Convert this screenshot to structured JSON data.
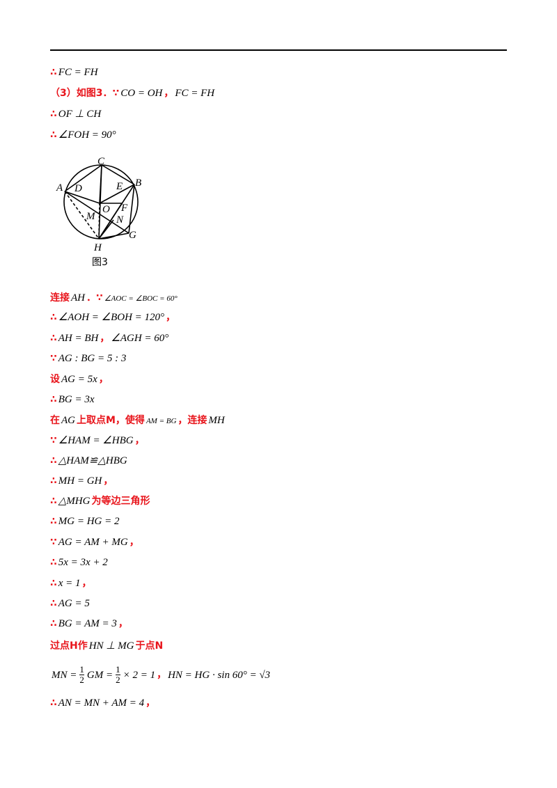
{
  "lines": [
    {
      "parts": [
        {
          "text": "∴",
          "style": "red"
        },
        {
          "text": "FC = FH",
          "style": "math"
        }
      ]
    },
    {
      "parts": [
        {
          "text": "（3）如图3．∵",
          "style": "red"
        },
        {
          "text": "CO = OH",
          "style": "math"
        },
        {
          "text": "，",
          "style": "red"
        },
        {
          "text": "FC = FH",
          "style": "math"
        }
      ]
    },
    {
      "parts": [
        {
          "text": "∴",
          "style": "red"
        },
        {
          "text": "OF ⊥ CH",
          "style": "math"
        }
      ]
    },
    {
      "parts": [
        {
          "text": "∴",
          "style": "red"
        },
        {
          "text": "∠FOH = 90°",
          "style": "math"
        }
      ]
    },
    {
      "parts": [
        {
          "text": "连接",
          "style": "red"
        },
        {
          "text": "AH",
          "style": "math"
        },
        {
          "text": "．∵",
          "style": "red"
        },
        {
          "text": "∠AOC = ∠BOC = 60°",
          "style": "small"
        }
      ]
    },
    {
      "parts": [
        {
          "text": "∴",
          "style": "red"
        },
        {
          "text": "∠AOH = ∠BOH = 120°",
          "style": "math"
        },
        {
          "text": "，",
          "style": "red"
        }
      ]
    },
    {
      "parts": [
        {
          "text": "∴",
          "style": "red"
        },
        {
          "text": "AH = BH",
          "style": "math"
        },
        {
          "text": "，",
          "style": "red"
        },
        {
          "text": "∠AGH = 60°",
          "style": "math"
        }
      ]
    },
    {
      "parts": [
        {
          "text": "∵",
          "style": "red"
        },
        {
          "text": "AG : BG = 5 : 3",
          "style": "math"
        }
      ]
    },
    {
      "parts": [
        {
          "text": "设",
          "style": "red"
        },
        {
          "text": "AG = 5x",
          "style": "math"
        },
        {
          "text": "，",
          "style": "red"
        }
      ]
    },
    {
      "parts": [
        {
          "text": "∴",
          "style": "red"
        },
        {
          "text": "BG = 3x",
          "style": "math"
        }
      ]
    },
    {
      "parts": [
        {
          "text": "在",
          "style": "red"
        },
        {
          "text": "AG",
          "style": "math"
        },
        {
          "text": "上取点M，使得",
          "style": "red"
        },
        {
          "text": "AM = BG",
          "style": "small"
        },
        {
          "text": "，连接",
          "style": "red"
        },
        {
          "text": "MH",
          "style": "math"
        }
      ]
    },
    {
      "parts": [
        {
          "text": "∵",
          "style": "red"
        },
        {
          "text": "∠HAM = ∠HBG",
          "style": "math"
        },
        {
          "text": "，",
          "style": "red"
        }
      ]
    },
    {
      "parts": [
        {
          "text": "∴",
          "style": "red"
        },
        {
          "text": "△HAM≌△HBG",
          "style": "math"
        }
      ]
    },
    {
      "parts": [
        {
          "text": "∴",
          "style": "red"
        },
        {
          "text": "MH = GH",
          "style": "math"
        },
        {
          "text": "，",
          "style": "red"
        }
      ]
    },
    {
      "parts": [
        {
          "text": "∴",
          "style": "red"
        },
        {
          "text": "△MHG",
          "style": "math"
        },
        {
          "text": "为等边三角形",
          "style": "red"
        }
      ]
    },
    {
      "parts": [
        {
          "text": "∴",
          "style": "red"
        },
        {
          "text": "MG = HG = 2",
          "style": "math"
        }
      ]
    },
    {
      "parts": [
        {
          "text": "∵",
          "style": "red"
        },
        {
          "text": "AG = AM + MG",
          "style": "math"
        },
        {
          "text": "，",
          "style": "red"
        }
      ]
    },
    {
      "parts": [
        {
          "text": "∴",
          "style": "red"
        },
        {
          "text": "5x = 3x + 2",
          "style": "math"
        }
      ]
    },
    {
      "parts": [
        {
          "text": "∴",
          "style": "red"
        },
        {
          "text": "x = 1",
          "style": "math"
        },
        {
          "text": "，",
          "style": "red"
        }
      ]
    },
    {
      "parts": [
        {
          "text": "∴",
          "style": "red"
        },
        {
          "text": "AG = 5",
          "style": "math"
        }
      ]
    },
    {
      "parts": [
        {
          "text": "∴",
          "style": "red"
        },
        {
          "text": "BG = AM = 3",
          "style": "math"
        },
        {
          "text": "，",
          "style": "red"
        }
      ]
    },
    {
      "parts": [
        {
          "text": "过点H作",
          "style": "red"
        },
        {
          "text": "HN ⊥ MG",
          "style": "math"
        },
        {
          "text": "于点N",
          "style": "red"
        }
      ]
    },
    {
      "parts": [
        {
          "text": "MN =",
          "style": "math"
        },
        {
          "num": "1",
          "den": "2"
        },
        {
          "text": "GM =",
          "style": "math"
        },
        {
          "num": "1",
          "den": "2"
        },
        {
          "text": "× 2 = 1",
          "style": "math"
        },
        {
          "text": "，",
          "style": "red"
        },
        {
          "text": "HN = HG · sin 60° = √3",
          "style": "math"
        }
      ]
    },
    {
      "parts": [
        {
          "text": "∴",
          "style": "red"
        },
        {
          "text": "AN = MN + AM = 4",
          "style": "math"
        },
        {
          "text": "，",
          "style": "red"
        }
      ]
    }
  ],
  "figure": {
    "labels": [
      "C",
      "A",
      "D",
      "E",
      "B",
      "O",
      "F",
      "M",
      "N",
      "G",
      "H"
    ],
    "caption": "图3"
  }
}
